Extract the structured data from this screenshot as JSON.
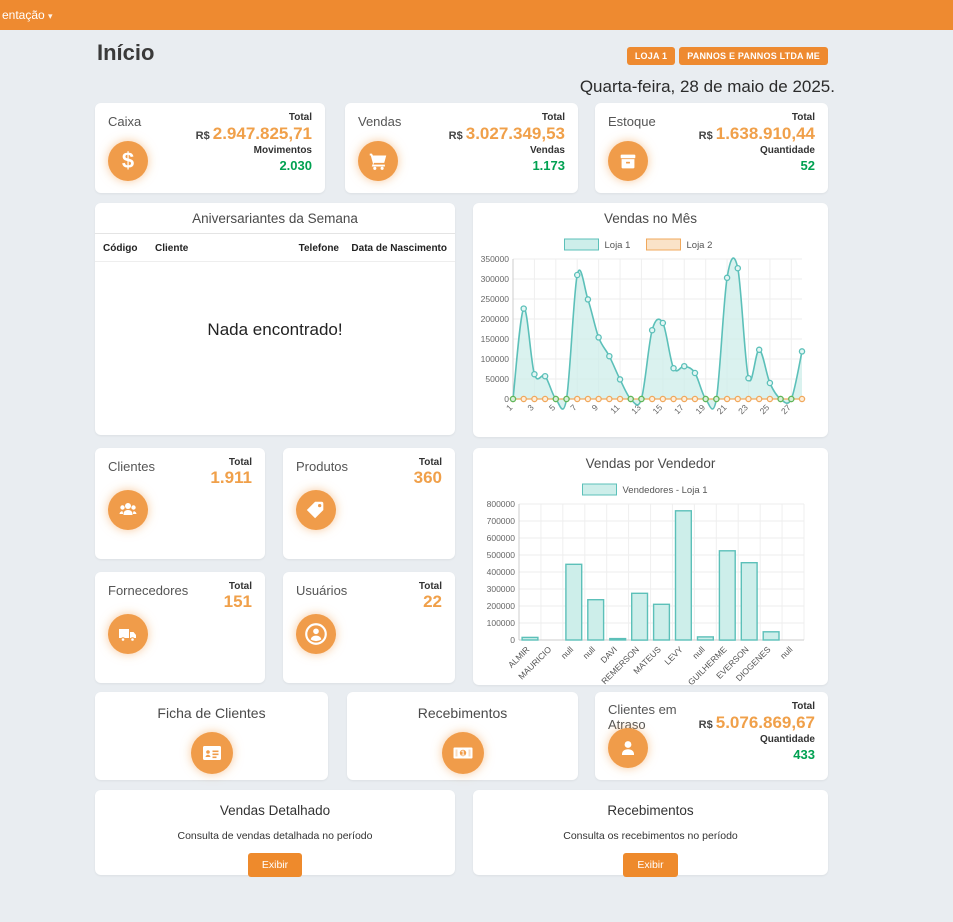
{
  "topbar": {
    "menu_label": "entação"
  },
  "header": {
    "title": "Início",
    "badges": [
      "LOJA 1",
      "PANNOS E PANNOS LTDA ME"
    ],
    "date": "Quarta-feira, 28 de maio de 2025."
  },
  "stat_cards": {
    "caixa": {
      "title": "Caixa",
      "total_label": "Total",
      "currency": "R$",
      "total_value": "2.947.825,71",
      "sub_label": "Movimentos",
      "sub_value": "2.030"
    },
    "vendas": {
      "title": "Vendas",
      "total_label": "Total",
      "currency": "R$",
      "total_value": "3.027.349,53",
      "sub_label": "Vendas",
      "sub_value": "1.173"
    },
    "estoque": {
      "title": "Estoque",
      "total_label": "Total",
      "currency": "R$",
      "total_value": "1.638.910,44",
      "sub_label": "Quantidade",
      "sub_value": "52"
    }
  },
  "birthdays": {
    "title": "Aniversariantes da Semana",
    "columns": [
      "Código",
      "Cliente",
      "Telefone",
      "Data de Nascimento"
    ],
    "empty_message": "Nada encontrado!"
  },
  "count_cards": {
    "clientes": {
      "title": "Clientes",
      "total_label": "Total",
      "value": "1.911"
    },
    "produtos": {
      "title": "Produtos",
      "total_label": "Total",
      "value": "360"
    },
    "fornecedores": {
      "title": "Fornecedores",
      "total_label": "Total",
      "value": "151"
    },
    "usuarios": {
      "title": "Usuários",
      "total_label": "Total",
      "value": "22"
    }
  },
  "action_cards": {
    "ficha": {
      "title": "Ficha de Clientes"
    },
    "recebimentos": {
      "title": "Recebimentos"
    }
  },
  "overdue_card": {
    "title": "Clientes em Atraso",
    "total_label": "Total",
    "currency": "R$",
    "total_value": "5.076.869,67",
    "sub_label": "Quantidade",
    "sub_value": "433"
  },
  "report_cards": [
    {
      "title": "Vendas Detalhado",
      "description": "Consulta de vendas detalhada no período",
      "button": "Exibir"
    },
    {
      "title": "Recebimentos",
      "description": "Consulta os recebimentos no período",
      "button": "Exibir"
    }
  ],
  "chart_data": [
    {
      "type": "area",
      "title": "Vendas no Mês",
      "x": [
        1,
        2,
        3,
        4,
        5,
        6,
        7,
        8,
        9,
        10,
        11,
        12,
        13,
        14,
        15,
        16,
        17,
        18,
        19,
        20,
        21,
        22,
        23,
        24,
        25,
        26,
        27,
        28
      ],
      "x_ticks": [
        1,
        3,
        5,
        7,
        9,
        11,
        13,
        15,
        17,
        19,
        21,
        23,
        25,
        27
      ],
      "ylim": [
        0,
        350000
      ],
      "ystep": 50000,
      "grid": true,
      "legend_position": "top",
      "series": [
        {
          "name": "Loja 1",
          "color": "#5cc0b9",
          "fill_color": "#cdeeea",
          "values": [
            0,
            226000,
            62000,
            57000,
            0,
            0,
            310000,
            249000,
            154000,
            107000,
            49000,
            0,
            0,
            172000,
            190000,
            77000,
            82000,
            65000,
            0,
            0,
            303000,
            327000,
            52000,
            123000,
            40000,
            0,
            0,
            119000
          ]
        },
        {
          "name": "Loja 2",
          "color": "#f0a85c",
          "fill_color": "#fae3c8",
          "values": [
            0,
            0,
            0,
            0,
            0,
            0,
            0,
            0,
            0,
            0,
            0,
            0,
            0,
            0,
            0,
            0,
            0,
            0,
            0,
            0,
            0,
            0,
            0,
            0,
            0,
            0,
            0,
            0
          ]
        }
      ],
      "zero_dot_color": "#5cb85c"
    },
    {
      "type": "bar",
      "title": "Vendas por Vendedor",
      "legend": "Vendedores - Loja 1",
      "legend_position": "top",
      "bar_color": "#cdeeea",
      "bar_border": "#5cc0b9",
      "categories": [
        "ALMIR",
        "MAURICIO",
        "null",
        "null",
        "DAVI",
        "REMERSON",
        "MATEUS",
        "LEVY",
        "null",
        "GUILHERME",
        "EVERSON",
        "DIOGENES",
        "null"
      ],
      "values": [
        15000,
        0,
        445000,
        237000,
        8000,
        275000,
        210000,
        760000,
        18000,
        525000,
        455000,
        48000,
        2000
      ],
      "ylim": [
        0,
        800000
      ],
      "ystep": 100000,
      "grid": true
    }
  ]
}
